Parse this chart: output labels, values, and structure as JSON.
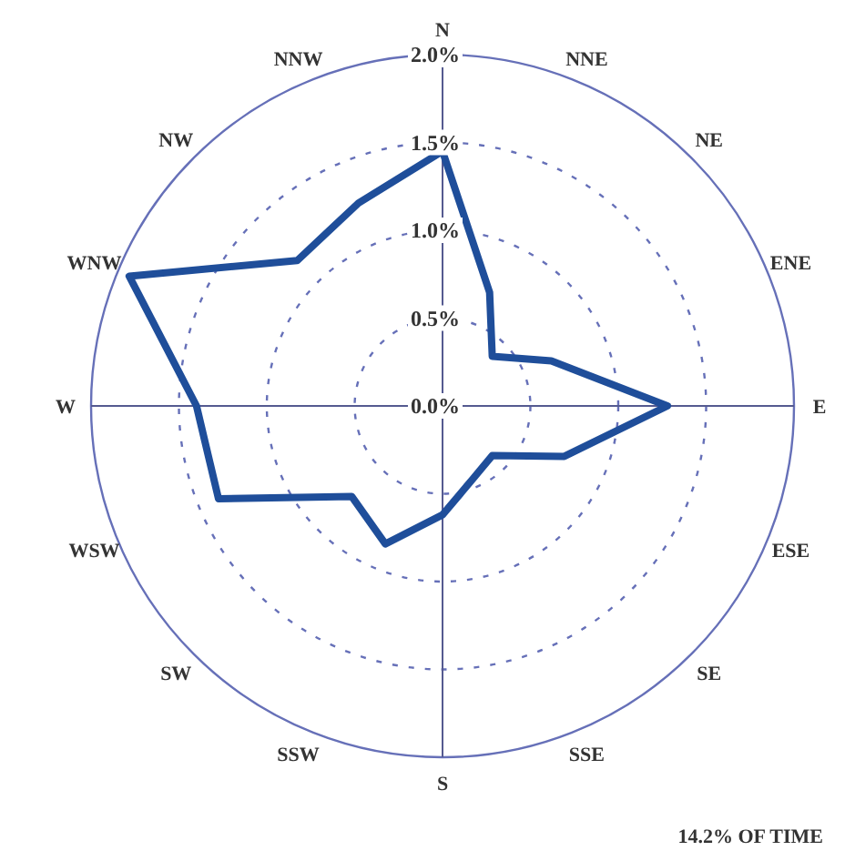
{
  "chart_data": {
    "type": "radar",
    "categories": [
      "N",
      "NNE",
      "NE",
      "ENE",
      "E",
      "ESE",
      "SE",
      "SSE",
      "S",
      "SSW",
      "SW",
      "WSW",
      "W",
      "WNW",
      "NW",
      "NNW"
    ],
    "series": [
      {
        "color": "#1f4e9a",
        "values": [
          1.45,
          0.7,
          0.4,
          0.67,
          1.28,
          0.75,
          0.4,
          0.45,
          0.62,
          0.85,
          0.73,
          1.38,
          1.4,
          1.93,
          1.17,
          1.25
        ]
      }
    ],
    "ylim": [
      0,
      2
    ],
    "yticks": [
      {
        "value": 0,
        "label": "0.0%"
      },
      {
        "value": 0.5,
        "label": "0.5%"
      },
      {
        "value": 1,
        "label": "1.0%"
      },
      {
        "value": 1.5,
        "label": "1.5%"
      },
      {
        "value": 2,
        "label": "2.0%"
      }
    ],
    "grid": true,
    "line_style": "solid",
    "annotations": [
      "14.2% OF TIME"
    ]
  }
}
